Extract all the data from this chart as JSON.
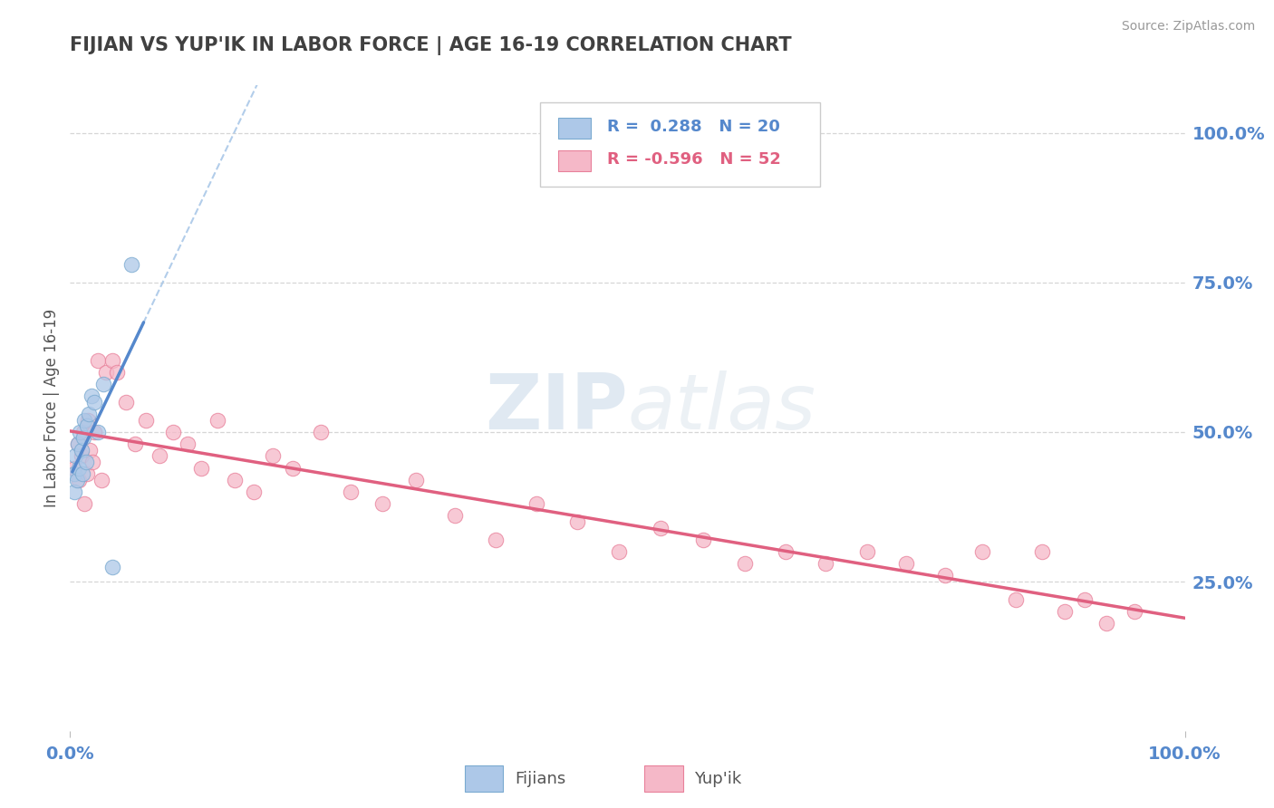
{
  "title": "FIJIAN VS YUP'IK IN LABOR FORCE | AGE 16-19 CORRELATION CHART",
  "source": "Source: ZipAtlas.com",
  "ylabel": "In Labor Force | Age 16-19",
  "ytick_labels": [
    "100.0%",
    "75.0%",
    "50.0%",
    "25.0%"
  ],
  "ytick_values": [
    1.0,
    0.75,
    0.5,
    0.25
  ],
  "xlim": [
    0.0,
    1.0
  ],
  "ylim": [
    0.0,
    1.08
  ],
  "fijian_color": "#adc8e8",
  "yupik_color": "#f5b8c8",
  "fijian_edge_color": "#7aaad0",
  "yupik_edge_color": "#e8809a",
  "fijian_line_color": "#5588cc",
  "yupik_line_color": "#e06080",
  "dashed_line_color": "#aac8e8",
  "grid_color": "#cccccc",
  "title_color": "#404040",
  "axis_tick_color": "#5588cc",
  "R_fijian": 0.288,
  "N_fijian": 20,
  "R_yupik": -0.596,
  "N_yupik": 52,
  "fijian_x": [
    0.004,
    0.004,
    0.005,
    0.006,
    0.007,
    0.008,
    0.009,
    0.01,
    0.011,
    0.012,
    0.013,
    0.014,
    0.015,
    0.017,
    0.019,
    0.022,
    0.025,
    0.03,
    0.038,
    0.055
  ],
  "fijian_y": [
    0.4,
    0.43,
    0.46,
    0.42,
    0.48,
    0.44,
    0.5,
    0.47,
    0.43,
    0.49,
    0.52,
    0.45,
    0.51,
    0.53,
    0.56,
    0.55,
    0.5,
    0.58,
    0.275,
    0.78
  ],
  "yupik_x": [
    0.004,
    0.007,
    0.008,
    0.01,
    0.012,
    0.013,
    0.015,
    0.016,
    0.018,
    0.02,
    0.022,
    0.025,
    0.028,
    0.032,
    0.038,
    0.042,
    0.05,
    0.058,
    0.068,
    0.08,
    0.092,
    0.105,
    0.118,
    0.132,
    0.148,
    0.165,
    0.182,
    0.2,
    0.225,
    0.252,
    0.28,
    0.31,
    0.345,
    0.382,
    0.418,
    0.455,
    0.492,
    0.53,
    0.568,
    0.605,
    0.642,
    0.678,
    0.715,
    0.75,
    0.785,
    0.818,
    0.848,
    0.872,
    0.892,
    0.91,
    0.93,
    0.955
  ],
  "yupik_y": [
    0.44,
    0.48,
    0.42,
    0.46,
    0.5,
    0.38,
    0.43,
    0.52,
    0.47,
    0.45,
    0.5,
    0.62,
    0.42,
    0.6,
    0.62,
    0.6,
    0.55,
    0.48,
    0.52,
    0.46,
    0.5,
    0.48,
    0.44,
    0.52,
    0.42,
    0.4,
    0.46,
    0.44,
    0.5,
    0.4,
    0.38,
    0.42,
    0.36,
    0.32,
    0.38,
    0.35,
    0.3,
    0.34,
    0.32,
    0.28,
    0.3,
    0.28,
    0.3,
    0.28,
    0.26,
    0.3,
    0.22,
    0.3,
    0.2,
    0.22,
    0.18,
    0.2
  ],
  "watermark_zip": "ZIP",
  "watermark_atlas": "atlas",
  "background_color": "#ffffff"
}
